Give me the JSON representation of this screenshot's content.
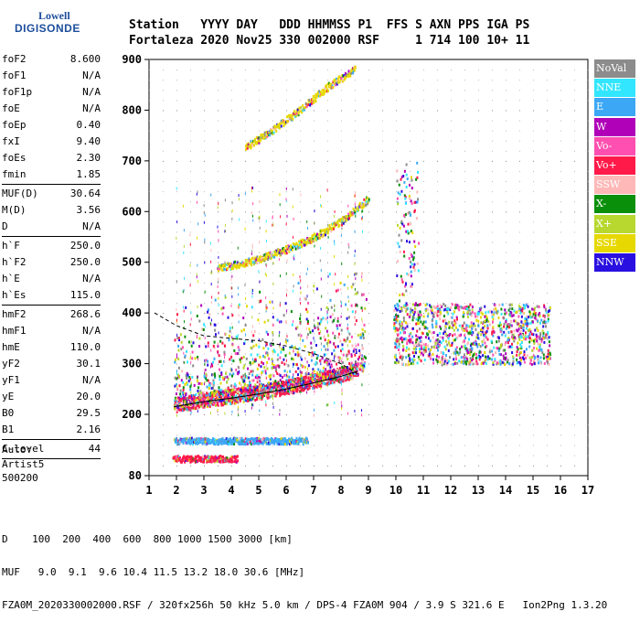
{
  "logo": {
    "line1": "Lowell",
    "line2": "DIGISONDE"
  },
  "header": {
    "line1": "Station   YYYY DAY   DDD HHMMSS P1  FFS S AXN PPS IGA PS",
    "line2": "Fortaleza 2020 Nov25 330 002000 RSF     1 714 100 10+ 11"
  },
  "params": [
    {
      "k": "foF2",
      "v": "8.600"
    },
    {
      "k": "foF1",
      "v": "N/A"
    },
    {
      "k": "foF1p",
      "v": "N/A"
    },
    {
      "k": "foE",
      "v": "N/A"
    },
    {
      "k": "foEp",
      "v": "0.40"
    },
    {
      "k": "fxI",
      "v": "9.40"
    },
    {
      "k": "foEs",
      "v": "2.30"
    },
    {
      "k": "fmin",
      "v": "1.85"
    },
    {
      "k": "MUF(D)",
      "v": "30.64"
    },
    {
      "k": "M(D)",
      "v": "3.56"
    },
    {
      "k": "D",
      "v": "N/A"
    },
    {
      "k": "h`F",
      "v": "250.0"
    },
    {
      "k": "h`F2",
      "v": "250.0"
    },
    {
      "k": "h`E",
      "v": "N/A"
    },
    {
      "k": "h`Es",
      "v": "115.0"
    },
    {
      "k": "hmF2",
      "v": "268.6"
    },
    {
      "k": "hmF1",
      "v": "N/A"
    },
    {
      "k": "hmE",
      "v": "110.0"
    },
    {
      "k": "yF2",
      "v": "30.1"
    },
    {
      "k": "yF1",
      "v": "N/A"
    },
    {
      "k": "yE",
      "v": "20.0"
    },
    {
      "k": "B0",
      "v": "29.5"
    },
    {
      "k": "B1",
      "v": "2.16"
    },
    {
      "k": "C-level",
      "v": "44"
    }
  ],
  "auto": {
    "l1": "Auto:",
    "l2": "Artist5",
    "l3": "500200"
  },
  "bottom": {
    "d_row": "D    100  200  400  600  800 1000 1500 3000 [km]",
    "muf_row": "MUF   9.0  9.1  9.6 10.4 11.5 13.2 18.0 30.6 [MHz]",
    "file_row": "FZA0M_2020330002000.RSF / 320fx256h 50 kHz 5.0 km / DPS-4 FZA0M 904 / 3.9 S 321.6 E   Ion2Png 1.3.20"
  },
  "legend": [
    {
      "label": "NoVal",
      "color": "#8c8c8c"
    },
    {
      "label": "NNE",
      "color": "#33e6ff"
    },
    {
      "label": "E",
      "color": "#3ca8f5"
    },
    {
      "label": "W",
      "color": "#b000b8"
    },
    {
      "label": "Vo-",
      "color": "#ff4fb0"
    },
    {
      "label": "Vo+",
      "color": "#ff1a4a"
    },
    {
      "label": "SSW",
      "color": "#ffb8b8"
    },
    {
      "label": "X-",
      "color": "#0a8f0a"
    },
    {
      "label": "X+",
      "color": "#b8d830"
    },
    {
      "label": "SSE",
      "color": "#e6d800"
    },
    {
      "label": "NNW",
      "color": "#2a10e0"
    }
  ],
  "chart_data": {
    "type": "scatter",
    "xlabel": "",
    "ylabel": "",
    "xlim": [
      1,
      17
    ],
    "ylim": [
      80,
      900
    ],
    "x_ticks": [
      "1",
      "2",
      "3",
      "4",
      "5",
      "6",
      "7",
      "8",
      "9",
      "10",
      "11",
      "12",
      "13",
      "14",
      "15",
      "16",
      "17"
    ],
    "y_ticks": [
      "80",
      "200",
      "300",
      "400",
      "500",
      "600",
      "700",
      "800",
      "900"
    ],
    "traces": [
      {
        "name": "Es",
        "color": "#ff1a4a",
        "x_range": [
          1.85,
          4.2
        ],
        "h": 115
      },
      {
        "name": "Es-2",
        "color": "#3ca8f5",
        "x_range": [
          1.9,
          6.8
        ],
        "h": 150
      },
      {
        "name": "F-trace",
        "color": "#ff1a4a",
        "points": [
          [
            1.9,
            215
          ],
          [
            3,
            225
          ],
          [
            4,
            232
          ],
          [
            5,
            240
          ],
          [
            6,
            250
          ],
          [
            7,
            262
          ],
          [
            8,
            275
          ],
          [
            8.6,
            285
          ]
        ]
      },
      {
        "name": "F-2hop",
        "color": "#e6d800",
        "points": [
          [
            3.5,
            487
          ],
          [
            5,
            505
          ],
          [
            6,
            525
          ],
          [
            7,
            548
          ],
          [
            8,
            580
          ],
          [
            9,
            625
          ]
        ]
      },
      {
        "name": "F-3hop",
        "color": "#e6d800",
        "points": [
          [
            4.5,
            725
          ],
          [
            5.5,
            760
          ],
          [
            6.5,
            800
          ],
          [
            7.5,
            845
          ],
          [
            8.5,
            880
          ]
        ]
      }
    ],
    "profile": [
      [
        1.2,
        400
      ],
      [
        2,
        375
      ],
      [
        3,
        355
      ],
      [
        4,
        350
      ],
      [
        5,
        345
      ],
      [
        6,
        335
      ],
      [
        7,
        320
      ],
      [
        8,
        300
      ],
      [
        8.6,
        280
      ]
    ],
    "spread_region": {
      "x_range": [
        9.9,
        15.6
      ],
      "h_range": [
        300,
        420
      ]
    }
  }
}
